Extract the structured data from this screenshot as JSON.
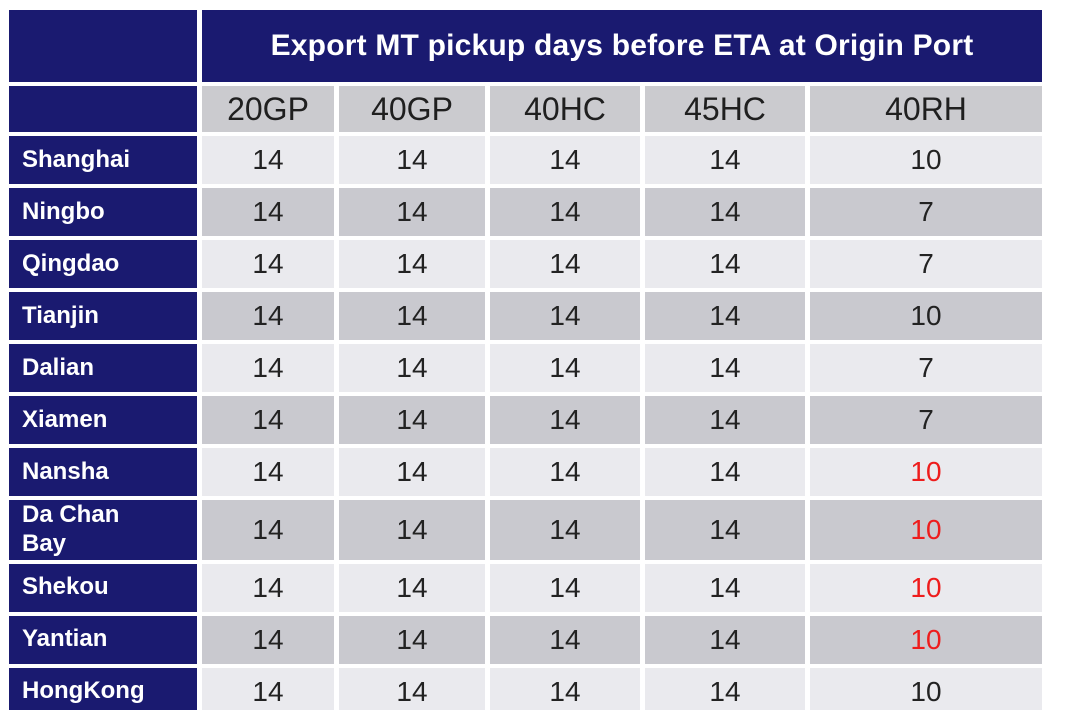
{
  "chart_data": {
    "type": "table",
    "title": "Export MT pickup days before ETA at Origin Port",
    "columns": [
      "20GP",
      "40GP",
      "40HC",
      "45HC",
      "40RH"
    ],
    "rows": [
      {
        "port": "Shanghai",
        "values": [
          "14",
          "14",
          "14",
          "14",
          "10"
        ],
        "red_value_indices": []
      },
      {
        "port": "Ningbo",
        "values": [
          "14",
          "14",
          "14",
          "14",
          "7"
        ],
        "red_value_indices": []
      },
      {
        "port": "Qingdao",
        "values": [
          "14",
          "14",
          "14",
          "14",
          "7"
        ],
        "red_value_indices": []
      },
      {
        "port": "Tianjin",
        "values": [
          "14",
          "14",
          "14",
          "14",
          "10"
        ],
        "red_value_indices": []
      },
      {
        "port": "Dalian",
        "values": [
          "14",
          "14",
          "14",
          "14",
          "7"
        ],
        "red_value_indices": []
      },
      {
        "port": "Xiamen",
        "values": [
          "14",
          "14",
          "14",
          "14",
          "7"
        ],
        "red_value_indices": []
      },
      {
        "port": "Nansha",
        "values": [
          "14",
          "14",
          "14",
          "14",
          "10"
        ],
        "red_value_indices": [
          4
        ]
      },
      {
        "port": "Da Chan Bay",
        "values": [
          "14",
          "14",
          "14",
          "14",
          "10"
        ],
        "red_value_indices": [
          4
        ]
      },
      {
        "port": "Shekou",
        "values": [
          "14",
          "14",
          "14",
          "14",
          "10"
        ],
        "red_value_indices": [
          4
        ]
      },
      {
        "port": "Yantian",
        "values": [
          "14",
          "14",
          "14",
          "14",
          "10"
        ],
        "red_value_indices": [
          4
        ]
      },
      {
        "port": "HongKong",
        "values": [
          "14",
          "14",
          "14",
          "14",
          "10"
        ],
        "red_value_indices": []
      }
    ],
    "layout_hints": {
      "row_striping": "odd rows light, even rows dark",
      "port_column_style": "navy background, white bold text",
      "red_values_meaning": "highlighted 40RH values for South China ports"
    },
    "colors": {
      "navy_header": "#1a1a70",
      "row_light": "#eaeaee",
      "row_dark": "#c9c9cf",
      "column_header_gray": "#cbcbcf",
      "value_text": "#222222",
      "red_value": "#ee1c1c",
      "title_text": "#ffffff",
      "gap_background": "#ffffff"
    }
  }
}
